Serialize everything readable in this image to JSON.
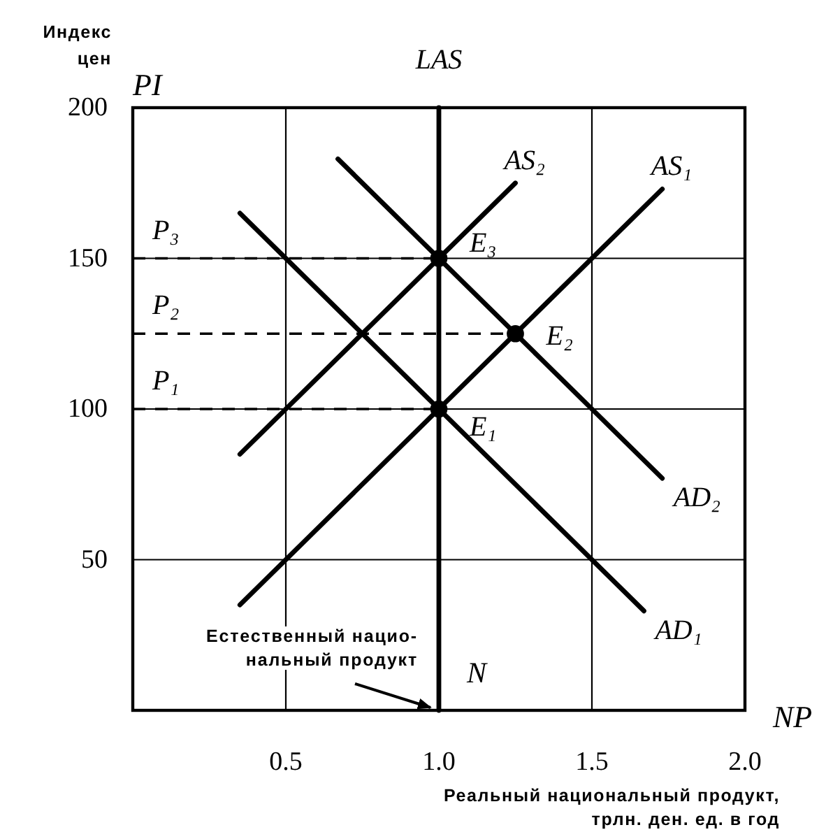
{
  "chart_data": {
    "type": "line",
    "ylabel": "Индекс\nцен",
    "xlabel": "Реальный национальный продукт,\nтрлн. ден. ед. в год",
    "xlim": [
      0,
      2
    ],
    "ylim": [
      0,
      200
    ],
    "xticks": [
      0.5,
      {
        "value": 1,
        "label": "1.0"
      },
      1.5,
      {
        "value": 2,
        "label": "2.0"
      }
    ],
    "yticks": [
      50,
      100,
      150,
      200
    ],
    "grid": true,
    "series": [
      {
        "name": "LAS",
        "color": "#000000",
        "x": [
          1,
          1
        ],
        "values": [
          0,
          200
        ]
      },
      {
        "name": "AS₁",
        "color": "#000000",
        "x": [
          0.35,
          1.73
        ],
        "values": [
          35,
          173
        ]
      },
      {
        "name": "AS₂",
        "color": "#000000",
        "x": [
          0.35,
          1.25
        ],
        "values": [
          85,
          175
        ]
      },
      {
        "name": "AD₁",
        "color": "#000000",
        "x": [
          0.35,
          1.67
        ],
        "values": [
          165,
          33
        ]
      },
      {
        "name": "AD₂",
        "color": "#000000",
        "x": [
          0.67,
          1.73
        ],
        "values": [
          183,
          77
        ]
      },
      {
        "name": "P₁",
        "color": "#000000",
        "line_style": "dashed",
        "x": [
          0,
          1
        ],
        "values": [
          100,
          100
        ]
      },
      {
        "name": "P₂",
        "color": "#000000",
        "line_style": "dashed",
        "x": [
          0,
          1.25
        ],
        "values": [
          125,
          125
        ]
      },
      {
        "name": "P₃",
        "color": "#000000",
        "line_style": "dashed",
        "x": [
          0,
          1
        ],
        "values": [
          150,
          150
        ]
      },
      {
        "name": "E₁",
        "type": "scatter",
        "color": "#000000",
        "marker": "circle",
        "x": [
          1
        ],
        "values": [
          100
        ]
      },
      {
        "name": "E₂",
        "type": "scatter",
        "color": "#000000",
        "marker": "circle",
        "x": [
          1.25
        ],
        "values": [
          125
        ]
      },
      {
        "name": "E₃",
        "type": "scatter",
        "color": "#000000",
        "marker": "circle",
        "x": [
          1
        ],
        "values": [
          150
        ]
      }
    ],
    "annotations": [
      {
        "text": "N",
        "x": 1,
        "y": 0
      },
      {
        "text": "Естественный нацио-\nнальный продукт",
        "x": 1,
        "y": 0
      },
      "PI",
      "NP"
    ]
  }
}
